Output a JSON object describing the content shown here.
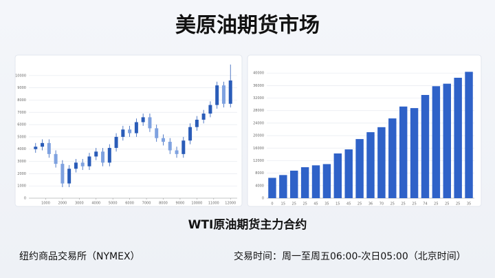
{
  "title": "美原油期货市场",
  "subtitle": "WTI原油期货主力合约",
  "footer": {
    "exchange": "纽约商品交易所（NYMEX）",
    "hours": "交易时间：周一至周五06:00-次日05:00（北京时间）"
  },
  "chart_data": [
    {
      "type": "candlestick",
      "color": "#2a5cb8",
      "x": [
        400,
        800,
        1200,
        1600,
        2000,
        2400,
        2800,
        3200,
        3600,
        4000,
        4400,
        4800,
        5200,
        5600,
        6000,
        6400,
        6800,
        7200,
        7600,
        8000,
        8400,
        8800,
        9200,
        9600,
        10000,
        10400,
        10800,
        11200,
        11600,
        12000
      ],
      "open": [
        4000,
        4200,
        4500,
        3600,
        2800,
        1200,
        2400,
        2900,
        2600,
        3400,
        3800,
        2900,
        4100,
        5000,
        5600,
        5300,
        6200,
        6600,
        5700,
        4900,
        4600,
        3900,
        3600,
        4700,
        5800,
        6400,
        6900,
        7600,
        9200,
        7700
      ],
      "close": [
        4200,
        4500,
        3600,
        2800,
        1200,
        2400,
        2900,
        2600,
        3400,
        3800,
        2900,
        4100,
        5000,
        5600,
        5300,
        6200,
        6600,
        5700,
        4900,
        4600,
        3900,
        3600,
        4700,
        5800,
        6400,
        6900,
        7600,
        9200,
        7700,
        9600
      ],
      "high": [
        4500,
        4800,
        4800,
        3900,
        3100,
        2700,
        3200,
        3200,
        3700,
        4100,
        4100,
        4400,
        5300,
        5900,
        5900,
        6500,
        6900,
        6900,
        6000,
        5200,
        4900,
        4200,
        5000,
        6100,
        6700,
        7200,
        7900,
        9500,
        9500,
        10900
      ],
      "low": [
        3700,
        3900,
        3300,
        2500,
        900,
        900,
        2100,
        2300,
        2300,
        3100,
        2600,
        2600,
        3800,
        4700,
        5000,
        5000,
        5900,
        5400,
        4600,
        4300,
        3600,
        3300,
        3300,
        4400,
        5500,
        6100,
        6600,
        7300,
        7400,
        7400
      ],
      "xlim": [
        0,
        12400
      ],
      "xticks": [
        1000,
        2000,
        3000,
        4000,
        5000,
        6000,
        7000,
        8000,
        9000,
        10000,
        11000,
        12000
      ],
      "ylim": [
        0,
        11000
      ],
      "yticks": [
        0,
        1000,
        2000,
        3000,
        4000,
        5000,
        6000,
        7000,
        8000,
        9000,
        10000
      ],
      "grid": true
    },
    {
      "type": "bar",
      "color": "#2f62c8",
      "categories": [
        "0",
        "15",
        "25",
        "25",
        "45",
        "35",
        "15",
        "45",
        "25",
        "36",
        "70",
        "25",
        "25",
        "25",
        "74",
        "25",
        "25",
        "25",
        "35"
      ],
      "values": [
        6500,
        7400,
        8800,
        9900,
        10500,
        10900,
        14300,
        15600,
        18900,
        21100,
        22700,
        25500,
        29300,
        28800,
        33000,
        35800,
        36600,
        38500,
        40400
      ],
      "ylim": [
        0,
        44000
      ],
      "yticks": [
        0,
        4000,
        8000,
        12000,
        16000,
        20000,
        24000,
        28000,
        32000,
        36000,
        40000
      ],
      "grid": true
    }
  ]
}
